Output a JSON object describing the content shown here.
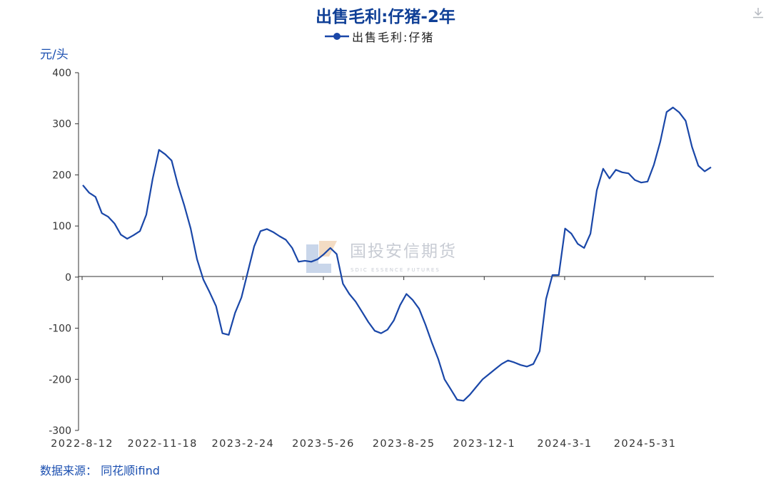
{
  "chart_data": {
    "type": "line",
    "title": "出售毛利:仔猪-2年",
    "ylabel": "元/头",
    "ylim": [
      -300,
      400
    ],
    "yticks": [
      "400",
      "300",
      "200",
      "100",
      "0",
      "-100",
      "-200",
      "-300"
    ],
    "xticks": [
      "2022-8-12",
      "2022-11-18",
      "2023-2-24",
      "2023-5-26",
      "2023-8-25",
      "2023-12-1",
      "2024-3-1",
      "2024-5-31"
    ],
    "legend_position": "top-center",
    "grid": false,
    "series": [
      {
        "name": "出售毛利:仔猪",
        "color": "#1a47a8",
        "values": [
          180,
          165,
          157,
          125,
          118,
          105,
          83,
          75,
          82,
          90,
          122,
          192,
          249,
          240,
          228,
          180,
          140,
          95,
          35,
          -5,
          -30,
          -57,
          -110,
          -113,
          -70,
          -40,
          10,
          60,
          90,
          94,
          88,
          80,
          73,
          57,
          30,
          32,
          30,
          35,
          45,
          57,
          45,
          -13,
          -33,
          -48,
          -68,
          -88,
          -105,
          -110,
          -103,
          -85,
          -55,
          -33,
          -45,
          -62,
          -93,
          -128,
          -160,
          -200,
          -220,
          -240,
          -242,
          -230,
          -215,
          -200,
          -190,
          -180,
          -170,
          -163,
          -167,
          -172,
          -175,
          -170,
          -145,
          -43,
          4,
          4,
          95,
          85,
          65,
          57,
          85,
          170,
          212,
          193,
          210,
          205,
          203,
          190,
          185,
          187,
          220,
          265,
          323,
          332,
          322,
          306,
          255,
          218,
          207,
          215
        ]
      }
    ]
  },
  "texts": {
    "unit": "元/头",
    "source": "数据来源： 同花顺ifind",
    "watermark_main": "国投安信期货",
    "watermark_sub": "SDIC ESSENCE FUTURES"
  },
  "icons": {
    "download": "download-icon",
    "watermark_logo": "company-logo-icon"
  }
}
